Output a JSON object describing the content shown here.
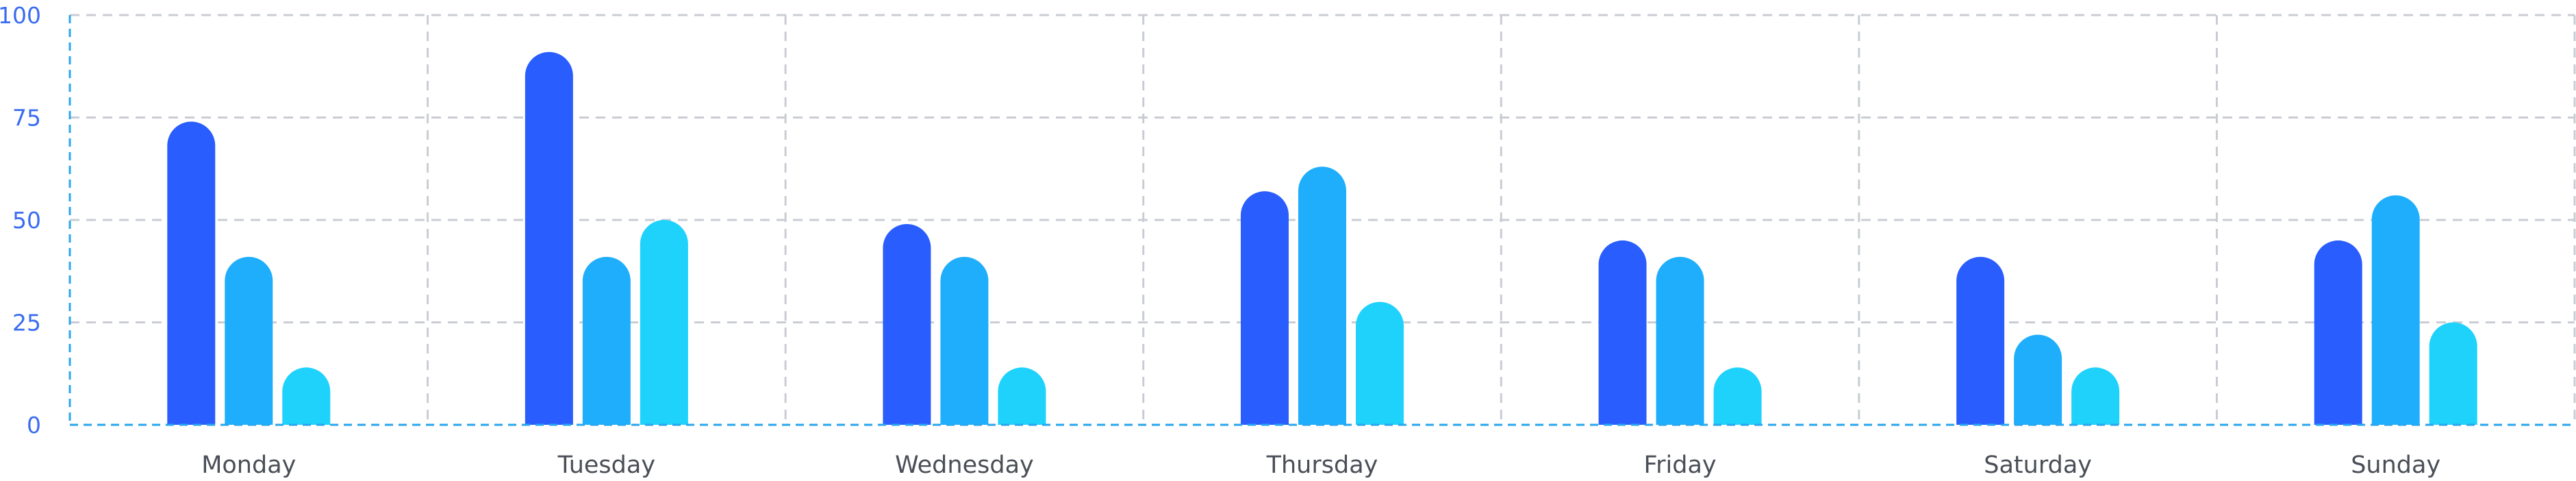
{
  "chart_data": {
    "type": "bar",
    "categories": [
      "Monday",
      "Tuesday",
      "Wednesday",
      "Thursday",
      "Friday",
      "Saturday",
      "Sunday"
    ],
    "series": [
      {
        "values": [
          74,
          91,
          49,
          57,
          45,
          41,
          45
        ],
        "color": "#2a5dfd"
      },
      {
        "values": [
          41,
          41,
          41,
          63,
          41,
          22,
          56
        ],
        "color": "#1eaefc"
      },
      {
        "values": [
          14,
          50,
          14,
          30,
          14,
          14,
          25
        ],
        "color": "#1ed2fc"
      }
    ],
    "ylim": [
      0,
      100
    ],
    "yticks": [
      0,
      25,
      50,
      75,
      100
    ],
    "grid": true,
    "title": "",
    "xlabel": "",
    "ylabel": ""
  }
}
